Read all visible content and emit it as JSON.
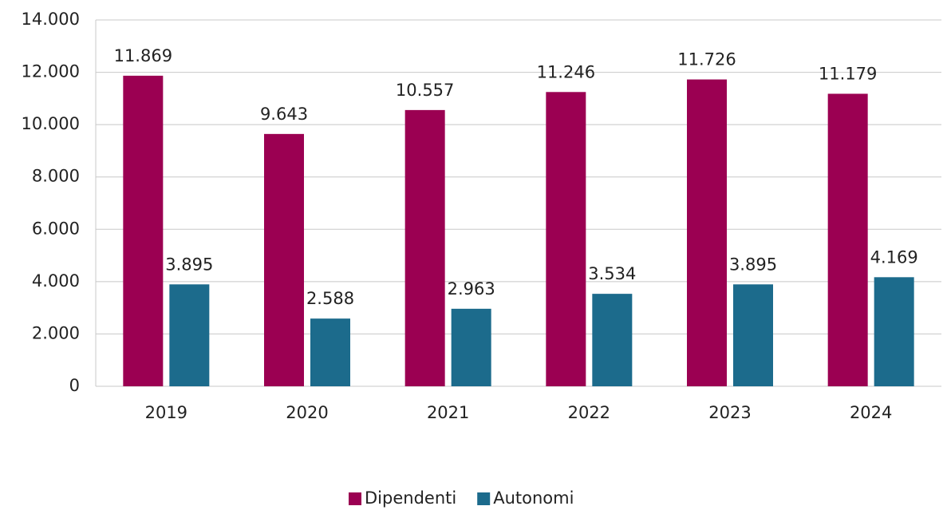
{
  "chart_data": {
    "type": "bar",
    "categories": [
      "2019",
      "2020",
      "2021",
      "2022",
      "2023",
      "2024"
    ],
    "series": [
      {
        "name": "Dipendenti",
        "color": "#9b0052",
        "values": [
          11869,
          9643,
          10557,
          11246,
          11726,
          11179
        ],
        "value_labels": [
          "11.869",
          "9.643",
          "10.557",
          "11.246",
          "11.726",
          "11.179"
        ]
      },
      {
        "name": "Autonomi",
        "color": "#1c6b8c",
        "values": [
          3895,
          2588,
          2963,
          3534,
          3895,
          4169
        ],
        "value_labels": [
          "3.895",
          "2.588",
          "2.963",
          "3.534",
          "3.895",
          "4.169"
        ]
      }
    ],
    "ylim": [
      0,
      14000
    ],
    "yticks": [
      0,
      {
        "value": 2000,
        "label": "2.000"
      },
      {
        "value": 4000,
        "label": "4.000"
      },
      {
        "value": 6000,
        "label": "6.000"
      },
      {
        "value": 8000,
        "label": "8.000"
      },
      {
        "value": 10000,
        "label": "10.000"
      },
      {
        "value": 12000,
        "label": "12.000"
      },
      {
        "value": 14000,
        "label": "14.000"
      }
    ],
    "grid": true,
    "legend": "bottom"
  }
}
